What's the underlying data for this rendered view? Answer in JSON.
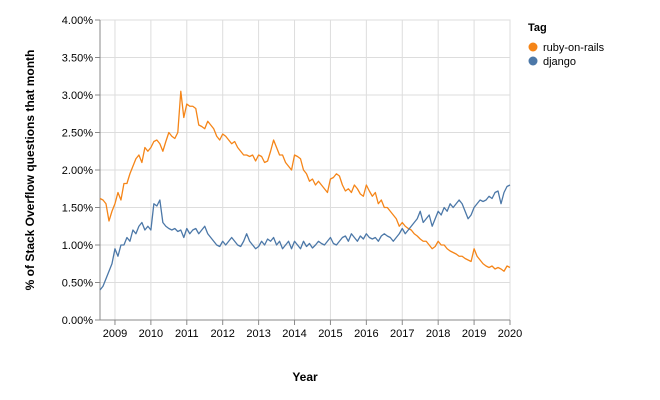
{
  "chart_data": {
    "type": "line",
    "xlabel": "Year",
    "ylabel": "% of Stack Overflow questions that month",
    "x_ticks": [
      "2009",
      "2010",
      "2011",
      "2012",
      "2013",
      "2014",
      "2015",
      "2016",
      "2017",
      "2018",
      "2019",
      "2020"
    ],
    "y_ticks": [
      "0.00%",
      "0.50%",
      "1.00%",
      "1.50%",
      "2.00%",
      "2.50%",
      "3.00%",
      "3.50%",
      "4.00%"
    ],
    "xlim": [
      "2008-08",
      "2020-01"
    ],
    "ylim": [
      0,
      4
    ],
    "grid": true,
    "legend": {
      "title": "Tag",
      "position": "right"
    },
    "series": [
      {
        "name": "ruby-on-rails",
        "color": "#f58518",
        "points": [
          [
            "2008-08",
            1.62
          ],
          [
            "2008-09",
            1.6
          ],
          [
            "2008-10",
            1.55
          ],
          [
            "2008-11",
            1.32
          ],
          [
            "2008-12",
            1.45
          ],
          [
            "2009-01",
            1.55
          ],
          [
            "2009-02",
            1.7
          ],
          [
            "2009-03",
            1.6
          ],
          [
            "2009-04",
            1.82
          ],
          [
            "2009-05",
            1.82
          ],
          [
            "2009-06",
            1.95
          ],
          [
            "2009-07",
            2.05
          ],
          [
            "2009-08",
            2.15
          ],
          [
            "2009-09",
            2.2
          ],
          [
            "2009-10",
            2.1
          ],
          [
            "2009-11",
            2.3
          ],
          [
            "2009-12",
            2.25
          ],
          [
            "2010-01",
            2.3
          ],
          [
            "2010-02",
            2.38
          ],
          [
            "2010-03",
            2.4
          ],
          [
            "2010-04",
            2.35
          ],
          [
            "2010-05",
            2.25
          ],
          [
            "2010-06",
            2.38
          ],
          [
            "2010-07",
            2.5
          ],
          [
            "2010-08",
            2.45
          ],
          [
            "2010-09",
            2.42
          ],
          [
            "2010-10",
            2.5
          ],
          [
            "2010-11",
            3.05
          ],
          [
            "2010-12",
            2.7
          ],
          [
            "2011-01",
            2.88
          ],
          [
            "2011-02",
            2.85
          ],
          [
            "2011-03",
            2.85
          ],
          [
            "2011-04",
            2.82
          ],
          [
            "2011-05",
            2.6
          ],
          [
            "2011-06",
            2.58
          ],
          [
            "2011-07",
            2.55
          ],
          [
            "2011-08",
            2.65
          ],
          [
            "2011-09",
            2.6
          ],
          [
            "2011-10",
            2.55
          ],
          [
            "2011-11",
            2.45
          ],
          [
            "2011-12",
            2.4
          ],
          [
            "2012-01",
            2.48
          ],
          [
            "2012-02",
            2.45
          ],
          [
            "2012-03",
            2.4
          ],
          [
            "2012-04",
            2.35
          ],
          [
            "2012-05",
            2.38
          ],
          [
            "2012-06",
            2.3
          ],
          [
            "2012-07",
            2.25
          ],
          [
            "2012-08",
            2.2
          ],
          [
            "2012-09",
            2.2
          ],
          [
            "2012-10",
            2.18
          ],
          [
            "2012-11",
            2.2
          ],
          [
            "2012-12",
            2.12
          ],
          [
            "2013-01",
            2.2
          ],
          [
            "2013-02",
            2.18
          ],
          [
            "2013-03",
            2.1
          ],
          [
            "2013-04",
            2.12
          ],
          [
            "2013-05",
            2.25
          ],
          [
            "2013-06",
            2.4
          ],
          [
            "2013-07",
            2.3
          ],
          [
            "2013-08",
            2.2
          ],
          [
            "2013-09",
            2.2
          ],
          [
            "2013-10",
            2.1
          ],
          [
            "2013-11",
            2.05
          ],
          [
            "2013-12",
            2.0
          ],
          [
            "2014-01",
            2.2
          ],
          [
            "2014-02",
            2.18
          ],
          [
            "2014-03",
            2.15
          ],
          [
            "2014-04",
            2.0
          ],
          [
            "2014-05",
            1.95
          ],
          [
            "2014-06",
            1.85
          ],
          [
            "2014-07",
            1.88
          ],
          [
            "2014-08",
            1.8
          ],
          [
            "2014-09",
            1.85
          ],
          [
            "2014-10",
            1.8
          ],
          [
            "2014-11",
            1.75
          ],
          [
            "2014-12",
            1.7
          ],
          [
            "2015-01",
            1.88
          ],
          [
            "2015-02",
            1.9
          ],
          [
            "2015-03",
            1.95
          ],
          [
            "2015-04",
            1.92
          ],
          [
            "2015-05",
            1.8
          ],
          [
            "2015-06",
            1.72
          ],
          [
            "2015-07",
            1.75
          ],
          [
            "2015-08",
            1.7
          ],
          [
            "2015-09",
            1.8
          ],
          [
            "2015-10",
            1.75
          ],
          [
            "2015-11",
            1.68
          ],
          [
            "2015-12",
            1.65
          ],
          [
            "2016-01",
            1.8
          ],
          [
            "2016-02",
            1.72
          ],
          [
            "2016-03",
            1.65
          ],
          [
            "2016-04",
            1.7
          ],
          [
            "2016-05",
            1.55
          ],
          [
            "2016-06",
            1.6
          ],
          [
            "2016-07",
            1.5
          ],
          [
            "2016-08",
            1.5
          ],
          [
            "2016-09",
            1.45
          ],
          [
            "2016-10",
            1.4
          ],
          [
            "2016-11",
            1.35
          ],
          [
            "2016-12",
            1.25
          ],
          [
            "2017-01",
            1.3
          ],
          [
            "2017-02",
            1.25
          ],
          [
            "2017-03",
            1.22
          ],
          [
            "2017-04",
            1.2
          ],
          [
            "2017-05",
            1.15
          ],
          [
            "2017-06",
            1.12
          ],
          [
            "2017-07",
            1.08
          ],
          [
            "2017-08",
            1.05
          ],
          [
            "2017-09",
            1.05
          ],
          [
            "2017-10",
            1.0
          ],
          [
            "2017-11",
            0.95
          ],
          [
            "2017-12",
            0.98
          ],
          [
            "2018-01",
            1.05
          ],
          [
            "2018-02",
            1.0
          ],
          [
            "2018-03",
            1.0
          ],
          [
            "2018-04",
            0.95
          ],
          [
            "2018-05",
            0.92
          ],
          [
            "2018-06",
            0.9
          ],
          [
            "2018-07",
            0.88
          ],
          [
            "2018-08",
            0.85
          ],
          [
            "2018-09",
            0.85
          ],
          [
            "2018-10",
            0.82
          ],
          [
            "2018-11",
            0.8
          ],
          [
            "2018-12",
            0.78
          ],
          [
            "2019-01",
            0.95
          ],
          [
            "2019-02",
            0.85
          ],
          [
            "2019-03",
            0.8
          ],
          [
            "2019-04",
            0.75
          ],
          [
            "2019-05",
            0.72
          ],
          [
            "2019-06",
            0.7
          ],
          [
            "2019-07",
            0.72
          ],
          [
            "2019-08",
            0.68
          ],
          [
            "2019-09",
            0.7
          ],
          [
            "2019-10",
            0.68
          ],
          [
            "2019-11",
            0.65
          ],
          [
            "2019-12",
            0.72
          ],
          [
            "2020-01",
            0.7
          ]
        ]
      },
      {
        "name": "django",
        "color": "#4c78a8",
        "points": [
          [
            "2008-08",
            0.4
          ],
          [
            "2008-09",
            0.45
          ],
          [
            "2008-10",
            0.55
          ],
          [
            "2008-11",
            0.65
          ],
          [
            "2008-12",
            0.75
          ],
          [
            "2009-01",
            0.95
          ],
          [
            "2009-02",
            0.85
          ],
          [
            "2009-03",
            1.0
          ],
          [
            "2009-04",
            1.0
          ],
          [
            "2009-05",
            1.1
          ],
          [
            "2009-06",
            1.05
          ],
          [
            "2009-07",
            1.2
          ],
          [
            "2009-08",
            1.15
          ],
          [
            "2009-09",
            1.25
          ],
          [
            "2009-10",
            1.3
          ],
          [
            "2009-11",
            1.2
          ],
          [
            "2009-12",
            1.25
          ],
          [
            "2010-01",
            1.2
          ],
          [
            "2010-02",
            1.55
          ],
          [
            "2010-03",
            1.52
          ],
          [
            "2010-04",
            1.6
          ],
          [
            "2010-05",
            1.3
          ],
          [
            "2010-06",
            1.25
          ],
          [
            "2010-07",
            1.22
          ],
          [
            "2010-08",
            1.2
          ],
          [
            "2010-09",
            1.22
          ],
          [
            "2010-10",
            1.18
          ],
          [
            "2010-11",
            1.2
          ],
          [
            "2010-12",
            1.1
          ],
          [
            "2011-01",
            1.22
          ],
          [
            "2011-02",
            1.15
          ],
          [
            "2011-03",
            1.2
          ],
          [
            "2011-04",
            1.22
          ],
          [
            "2011-05",
            1.15
          ],
          [
            "2011-06",
            1.2
          ],
          [
            "2011-07",
            1.25
          ],
          [
            "2011-08",
            1.15
          ],
          [
            "2011-09",
            1.1
          ],
          [
            "2011-10",
            1.05
          ],
          [
            "2011-11",
            1.0
          ],
          [
            "2011-12",
            0.98
          ],
          [
            "2012-01",
            1.05
          ],
          [
            "2012-02",
            1.0
          ],
          [
            "2012-03",
            1.05
          ],
          [
            "2012-04",
            1.1
          ],
          [
            "2012-05",
            1.05
          ],
          [
            "2012-06",
            1.0
          ],
          [
            "2012-07",
            0.98
          ],
          [
            "2012-08",
            1.05
          ],
          [
            "2012-09",
            1.15
          ],
          [
            "2012-10",
            1.05
          ],
          [
            "2012-11",
            1.0
          ],
          [
            "2012-12",
            0.95
          ],
          [
            "2013-01",
            0.98
          ],
          [
            "2013-02",
            1.05
          ],
          [
            "2013-03",
            1.0
          ],
          [
            "2013-04",
            1.08
          ],
          [
            "2013-05",
            1.05
          ],
          [
            "2013-06",
            1.1
          ],
          [
            "2013-07",
            1.0
          ],
          [
            "2013-08",
            1.05
          ],
          [
            "2013-09",
            0.95
          ],
          [
            "2013-10",
            1.0
          ],
          [
            "2013-11",
            1.05
          ],
          [
            "2013-12",
            0.95
          ],
          [
            "2014-01",
            1.05
          ],
          [
            "2014-02",
            1.0
          ],
          [
            "2014-03",
            0.95
          ],
          [
            "2014-04",
            1.05
          ],
          [
            "2014-05",
            0.98
          ],
          [
            "2014-06",
            1.02
          ],
          [
            "2014-07",
            0.96
          ],
          [
            "2014-08",
            1.0
          ],
          [
            "2014-09",
            1.05
          ],
          [
            "2014-10",
            1.02
          ],
          [
            "2014-11",
            1.0
          ],
          [
            "2014-12",
            1.05
          ],
          [
            "2015-01",
            1.1
          ],
          [
            "2015-02",
            1.02
          ],
          [
            "2015-03",
            1.0
          ],
          [
            "2015-04",
            1.05
          ],
          [
            "2015-05",
            1.1
          ],
          [
            "2015-06",
            1.12
          ],
          [
            "2015-07",
            1.05
          ],
          [
            "2015-08",
            1.15
          ],
          [
            "2015-09",
            1.1
          ],
          [
            "2015-10",
            1.05
          ],
          [
            "2015-11",
            1.12
          ],
          [
            "2015-12",
            1.08
          ],
          [
            "2016-01",
            1.15
          ],
          [
            "2016-02",
            1.1
          ],
          [
            "2016-03",
            1.08
          ],
          [
            "2016-04",
            1.1
          ],
          [
            "2016-05",
            1.05
          ],
          [
            "2016-06",
            1.12
          ],
          [
            "2016-07",
            1.15
          ],
          [
            "2016-08",
            1.12
          ],
          [
            "2016-09",
            1.1
          ],
          [
            "2016-10",
            1.05
          ],
          [
            "2016-11",
            1.1
          ],
          [
            "2016-12",
            1.15
          ],
          [
            "2017-01",
            1.22
          ],
          [
            "2017-02",
            1.15
          ],
          [
            "2017-03",
            1.2
          ],
          [
            "2017-04",
            1.25
          ],
          [
            "2017-05",
            1.3
          ],
          [
            "2017-06",
            1.35
          ],
          [
            "2017-07",
            1.45
          ],
          [
            "2017-08",
            1.3
          ],
          [
            "2017-09",
            1.35
          ],
          [
            "2017-10",
            1.4
          ],
          [
            "2017-11",
            1.25
          ],
          [
            "2017-12",
            1.35
          ],
          [
            "2018-01",
            1.45
          ],
          [
            "2018-02",
            1.4
          ],
          [
            "2018-03",
            1.5
          ],
          [
            "2018-04",
            1.45
          ],
          [
            "2018-05",
            1.55
          ],
          [
            "2018-06",
            1.5
          ],
          [
            "2018-07",
            1.55
          ],
          [
            "2018-08",
            1.6
          ],
          [
            "2018-09",
            1.55
          ],
          [
            "2018-10",
            1.45
          ],
          [
            "2018-11",
            1.35
          ],
          [
            "2018-12",
            1.4
          ],
          [
            "2019-01",
            1.5
          ],
          [
            "2019-02",
            1.55
          ],
          [
            "2019-03",
            1.6
          ],
          [
            "2019-04",
            1.58
          ],
          [
            "2019-05",
            1.6
          ],
          [
            "2019-06",
            1.65
          ],
          [
            "2019-07",
            1.62
          ],
          [
            "2019-08",
            1.7
          ],
          [
            "2019-09",
            1.72
          ],
          [
            "2019-10",
            1.55
          ],
          [
            "2019-11",
            1.7
          ],
          [
            "2019-12",
            1.78
          ],
          [
            "2020-01",
            1.8
          ]
        ]
      }
    ]
  }
}
